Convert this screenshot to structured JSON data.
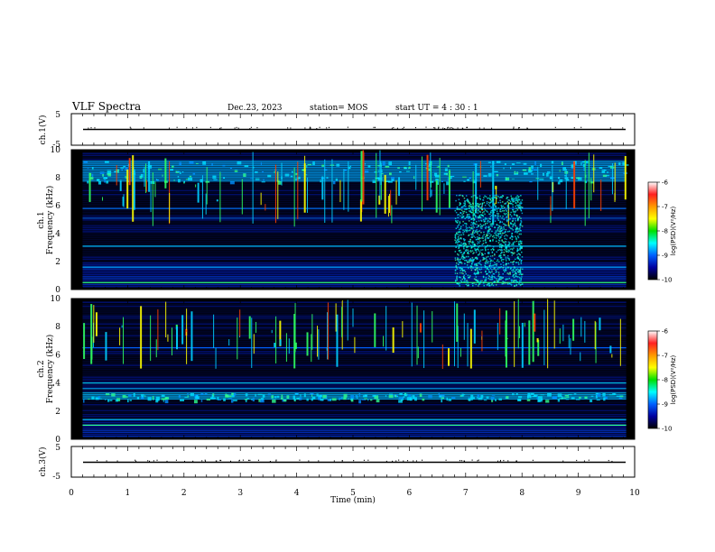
{
  "header": {
    "title": "VLF Spectra",
    "date": "Dec.23, 2023",
    "station": "station= MOS",
    "start": "start  UT =   4 : 30 : 1"
  },
  "colorbar": {
    "label": "log(PSD)(V²/Hz)",
    "ticks": [
      "-6",
      "-7",
      "-8",
      "-9",
      "-10"
    ],
    "colors": [
      "#ffffff",
      "#ff2020",
      "#ff9900",
      "#ffff00",
      "#00e000",
      "#00ffff",
      "#0060ff",
      "#0000a0",
      "#000000"
    ]
  },
  "chart_data": [
    {
      "type": "line",
      "ylabel": "ch.1(V)",
      "ylim": [
        -5,
        5
      ],
      "yticks": [
        "5",
        "-5"
      ],
      "series": [
        {
          "x": [
            0,
            10
          ],
          "y": [
            0,
            0
          ]
        }
      ]
    },
    {
      "type": "heatmap",
      "ylabel": "ch.1\nFrequency (kHz)",
      "ylim": [
        0,
        10
      ],
      "yticks": [
        "10",
        "8",
        "6",
        "4",
        "2",
        "0"
      ],
      "features": {
        "band_khz": [
          7.7,
          9.2
        ],
        "burst_min": [
          6.8,
          8.0
        ],
        "burst_khz": [
          0.3,
          6.8
        ]
      }
    },
    {
      "type": "heatmap",
      "ylabel": "ch.2\nFrequency (kHz)",
      "ylim": [
        0,
        10
      ],
      "yticks": [
        "10",
        "8",
        "6",
        "4",
        "2",
        "0"
      ],
      "features": {
        "band_khz": [
          2.8,
          3.3
        ]
      }
    },
    {
      "type": "line",
      "ylabel": "ch.3(V)",
      "xlabel": "Time  (min)",
      "ylim": [
        -5,
        5
      ],
      "yticks": [
        "5",
        "-5"
      ],
      "xlim": [
        0,
        10
      ],
      "xticks": [
        "0",
        "1",
        "2",
        "3",
        "4",
        "5",
        "6",
        "7",
        "8",
        "9",
        "10"
      ],
      "series": [
        {
          "x": [
            0,
            10
          ],
          "y": [
            0,
            0
          ]
        }
      ]
    }
  ]
}
